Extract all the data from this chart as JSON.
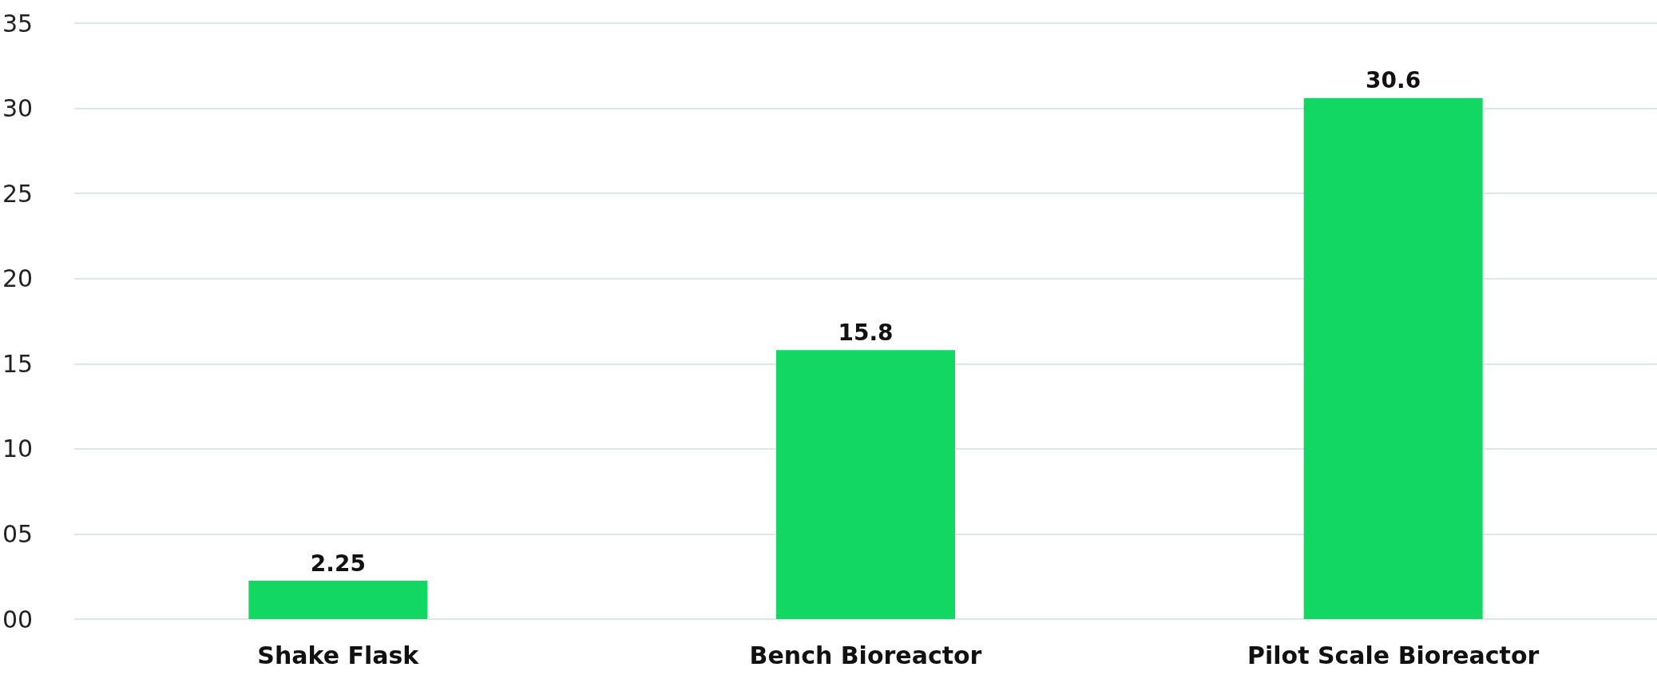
{
  "chart_data": {
    "type": "bar",
    "categories": [
      "Shake Flask",
      "Bench Bioreactor",
      "Pilot Scale Bioreactor"
    ],
    "values": [
      2.25,
      15.8,
      30.6
    ],
    "color": "#12d863",
    "ylim": [
      0,
      35
    ],
    "yticks": [
      {
        "value": 0,
        "label": "00"
      },
      {
        "value": 5,
        "label": "05"
      },
      10,
      15,
      20,
      25,
      30,
      35
    ],
    "grid": "y",
    "data_labels": true
  }
}
